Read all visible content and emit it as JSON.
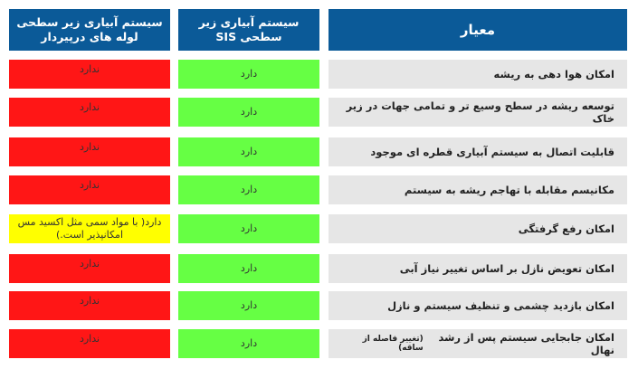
{
  "table": {
    "header": {
      "color": "#0b5a98",
      "cells": [
        "معیار",
        "سیستم آبیاری زیر سطحی SIS",
        "سیستم آبیاری زیر سطحی لوله های درپیردار"
      ]
    },
    "criteria_color": "#e6e6e6",
    "rows": [
      {
        "criterion": "امکان هوا دهی به ریشه",
        "sis": {
          "text": "دارد",
          "color": "#66ff44"
        },
        "pipe": {
          "text": "ندارد",
          "color": "#ff1616"
        }
      },
      {
        "criterion": "توسعه ریشه در سطح وسیع تر و تمامی جهات در زیر خاک",
        "sis": {
          "text": "دارد",
          "color": "#66ff44"
        },
        "pipe": {
          "text": "ندارد",
          "color": "#ff1616"
        }
      },
      {
        "criterion": "قابلیت اتصال به سیستم آبیاری قطره ای موجود",
        "sis": {
          "text": "دارد",
          "color": "#66ff44"
        },
        "pipe": {
          "text": "ندارد",
          "color": "#ff1616"
        }
      },
      {
        "criterion": "مکانیسم مقابله با تهاجم ریشه  به سیستم",
        "sis": {
          "text": "دارد",
          "color": "#66ff44"
        },
        "pipe": {
          "text": "ندارد",
          "color": "#ff1616"
        }
      },
      {
        "criterion": "امکان رفع گرفتگی",
        "sis": {
          "text": "دارد",
          "color": "#66ff44"
        },
        "pipe": {
          "text": "دارد( با مواد سمی مثل اکسید مس امکانپذیر است.)",
          "color": "#ffff00"
        }
      },
      {
        "criterion": "امکان تعویض نازل بر اساس تغییر نیاز آبی",
        "sis": {
          "text": "دارد",
          "color": "#66ff44"
        },
        "pipe": {
          "text": "ندارد",
          "color": "#ff1616"
        }
      },
      {
        "criterion": "امکان بازدید چشمی و تنظیف سیستم و نازل",
        "sis": {
          "text": "دارد",
          "color": "#66ff44"
        },
        "pipe": {
          "text": "ندارد",
          "color": "#ff1616"
        }
      },
      {
        "criterion": "امکان جابجایی سیستم پس از رشد نهال",
        "note": "(تغییر فاصله از ساقه)",
        "sis": {
          "text": "دارد",
          "color": "#66ff44"
        },
        "pipe": {
          "text": "ندارد",
          "color": "#ff1616"
        }
      }
    ]
  }
}
